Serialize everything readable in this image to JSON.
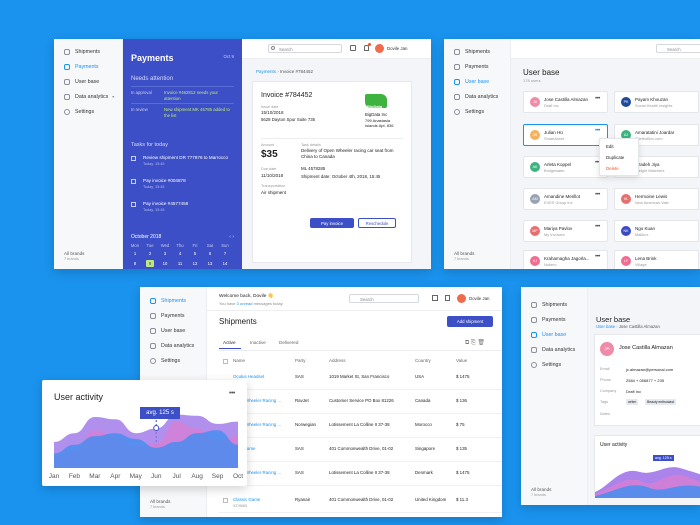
{
  "sidebar": {
    "items": [
      "Shipments",
      "Payments",
      "User base",
      "Data analytics",
      "Settings"
    ],
    "brands_label": "All brands",
    "brands_count": "7 brands"
  },
  "payments_screen": {
    "title": "Payments",
    "date": "Oct 9",
    "needs_attention": "Needs attention",
    "approval_status": "In approval",
    "approval_text": "Invoice #462812 needs your attention",
    "review_status": "In review",
    "review_text": "New shipment MK 45785 added to the list",
    "tasks_title": "Tasks for today",
    "tasks": [
      {
        "label": "Review shipment DR 777876 to Marrocco",
        "due": "Today, 15:45"
      },
      {
        "label": "Pay invoice #004878",
        "due": "Today, 15:45"
      },
      {
        "label": "Pay invoice #4577458",
        "due": "Today, 15:45"
      }
    ],
    "calendar_month": "October 2018",
    "weekdays": [
      "Mon",
      "Tue",
      "Wed",
      "Thu",
      "Fri",
      "Sat",
      "Sun"
    ],
    "week1": [
      "1",
      "2",
      "3",
      "4",
      "5",
      "6",
      "7"
    ],
    "week2": [
      "8",
      "9",
      "10",
      "11",
      "12",
      "13",
      "14"
    ],
    "search_placeholder": "Search",
    "user_name": "Dovile Jan",
    "breadcrumb_root": "Payments",
    "breadcrumb_current": "Invoice #784452",
    "invoice": {
      "title": "Invoice #784452",
      "issue_date_label": "Issue date",
      "issue_date": "15/10/2018",
      "address": "5628 Dayton Spur Suite 735",
      "company": "BigData Inc",
      "company_address": "799 Anastasia Islands Apt. 836",
      "logo_text": "BigData",
      "amount_label": "Amount",
      "amount": "$35",
      "task_label": "Task details",
      "task_text": "Delivery of Open Wheeler racing car seat from China to Canada",
      "ml": "ML 4578285",
      "due_label": "Due date",
      "due_date": "11/10/2018",
      "shipment_date": "Shipment date: October 4th, 2018, 15:45",
      "transport_label": "Transportation",
      "transport": "Air shipment",
      "pay_button": "Pay invoice",
      "reschedule_button": "Reschedule"
    }
  },
  "userbase_screen": {
    "title": "User base",
    "count": "178 users",
    "users_left": [
      {
        "initials": "JA",
        "name": "Jose Castilla Almazan",
        "company": "Draft Inc",
        "color": "#ef8aa8"
      },
      {
        "initials": "JH",
        "name": "Julian Hü",
        "company": "SmartAsset",
        "color": "#f4b25d"
      },
      {
        "initials": "AK",
        "name": "Arleta Koppel",
        "company": "Bridgewater",
        "color": "#3fb37f"
      },
      {
        "initials": "AM",
        "name": "Amandine Merillot",
        "company": "EVES Group Inc",
        "color": "#9aa3b5"
      },
      {
        "initials": "MP",
        "name": "Mariya Pavlov",
        "company": "My Invoices",
        "color": "#e86f6f"
      },
      {
        "initials": "KJ",
        "name": "Krahamagha Jagorla...",
        "company": "Nokero",
        "color": "#f06d8f"
      }
    ],
    "users_right": [
      {
        "initials": "PK",
        "name": "Payam Khouzan",
        "company": "Social Health Insights",
        "color": "#1f4a9c"
      },
      {
        "initials": "AJ",
        "name": "Amaratatini Joardar",
        "company": "Sitefind5xx.com",
        "color": "#3fb37f"
      },
      {
        "initials": "SJ",
        "name": "Szadeh Jiya",
        "company": "Weight Watchers",
        "color": "#3fb37f"
      },
      {
        "initials": "HL",
        "name": "Hermoine Lewis",
        "company": "New American Vale",
        "color": "#e86f6f"
      },
      {
        "initials": "NK",
        "name": "Ngo Kuan",
        "company": "Mailbox",
        "color": "#3a4bc4"
      },
      {
        "initials": "LF",
        "name": "Lena Brink",
        "company": "Village",
        "color": "#f06d8f"
      }
    ],
    "menu": [
      "Edit",
      "Duplicate",
      "Delete"
    ]
  },
  "shipments_screen": {
    "welcome": "Welcome back, Dovile 👋",
    "unread_prefix": "You have ",
    "unread_count": "3 unread",
    "unread_suffix": " messages today",
    "title": "Shipments",
    "add_button": "Add shipment",
    "tabs": [
      "Active",
      "Inactive",
      "Delivered"
    ],
    "columns": [
      "Name",
      "Party",
      "Address",
      "Country",
      "Value"
    ],
    "rows": [
      {
        "name": "Oculus Headset",
        "id": "9378665",
        "party": "SAS",
        "address": "1019 Market St, San Francisco",
        "country": "USA",
        "value": "$ 1475"
      },
      {
        "name": "Open Wheeler Racing ...",
        "id": "9378665",
        "party": "RavJet",
        "address": "Customer Service PO Box 81226",
        "country": "Canada",
        "value": "$ 136"
      },
      {
        "name": "Open Wheeler Racing ...",
        "id": "9378665",
        "party": "Norwegian",
        "address": "Lotissement La Colline II 37-38",
        "country": "Morocco",
        "value": "$ 75"
      },
      {
        "name": "Tags Game",
        "id": "9378665",
        "party": "SAS",
        "address": "401 Commonwealth Drive, 01-02",
        "country": "Singapore",
        "value": "$ 135"
      },
      {
        "name": "Open Wheeler Racing ...",
        "id": "9378665",
        "party": "SAS",
        "address": "Lotissement La Colline II 37-38",
        "country": "Denmark",
        "value": "$ 1475"
      },
      {
        "name": "Classic Game",
        "id": "9378665",
        "party": "Ryanair",
        "address": "401 Commonwealth Drive, 01-02",
        "country": "United Kingdom",
        "value": "$ 11.3"
      }
    ]
  },
  "activity_widget": {
    "title": "User activity",
    "tooltip": "avg. 125 s",
    "chart_data": {
      "type": "area",
      "x": [
        "Jan",
        "Feb",
        "Mar",
        "Apr",
        "May",
        "Jun",
        "Jul",
        "Aug",
        "Sep",
        "Oct"
      ],
      "series": [
        {
          "values": [
            45,
            60,
            88,
            84,
            60,
            68,
            92,
            90,
            76,
            80
          ],
          "color": "#9b6fe8"
        },
        {
          "values": [
            20,
            30,
            65,
            55,
            38,
            42,
            80,
            68,
            48,
            55
          ],
          "color": "#d77fd4"
        },
        {
          "values": [
            25,
            40,
            55,
            60,
            50,
            35,
            45,
            60,
            65,
            40
          ],
          "color": "#3d8ef0"
        }
      ]
    }
  },
  "profile_screen": {
    "title": "User base",
    "breadcrumb_root": "User base",
    "breadcrumb_current": "Jose Castilla Almazan",
    "initials": "JA",
    "name": "Jose Castilla Almazan",
    "email_label": "Email",
    "email": "jc.almazan@personal.com",
    "phone_label": "Phone",
    "phone": "2584 + 056877 + 235",
    "company_label": "Company",
    "company": "Draft Inc",
    "tags_label": "Tags",
    "tags": [
      "writer",
      "Beauty enthusiast"
    ],
    "notes_label": "Notes",
    "activity_title": "User activity",
    "tooltip": "avg. 125 s"
  }
}
